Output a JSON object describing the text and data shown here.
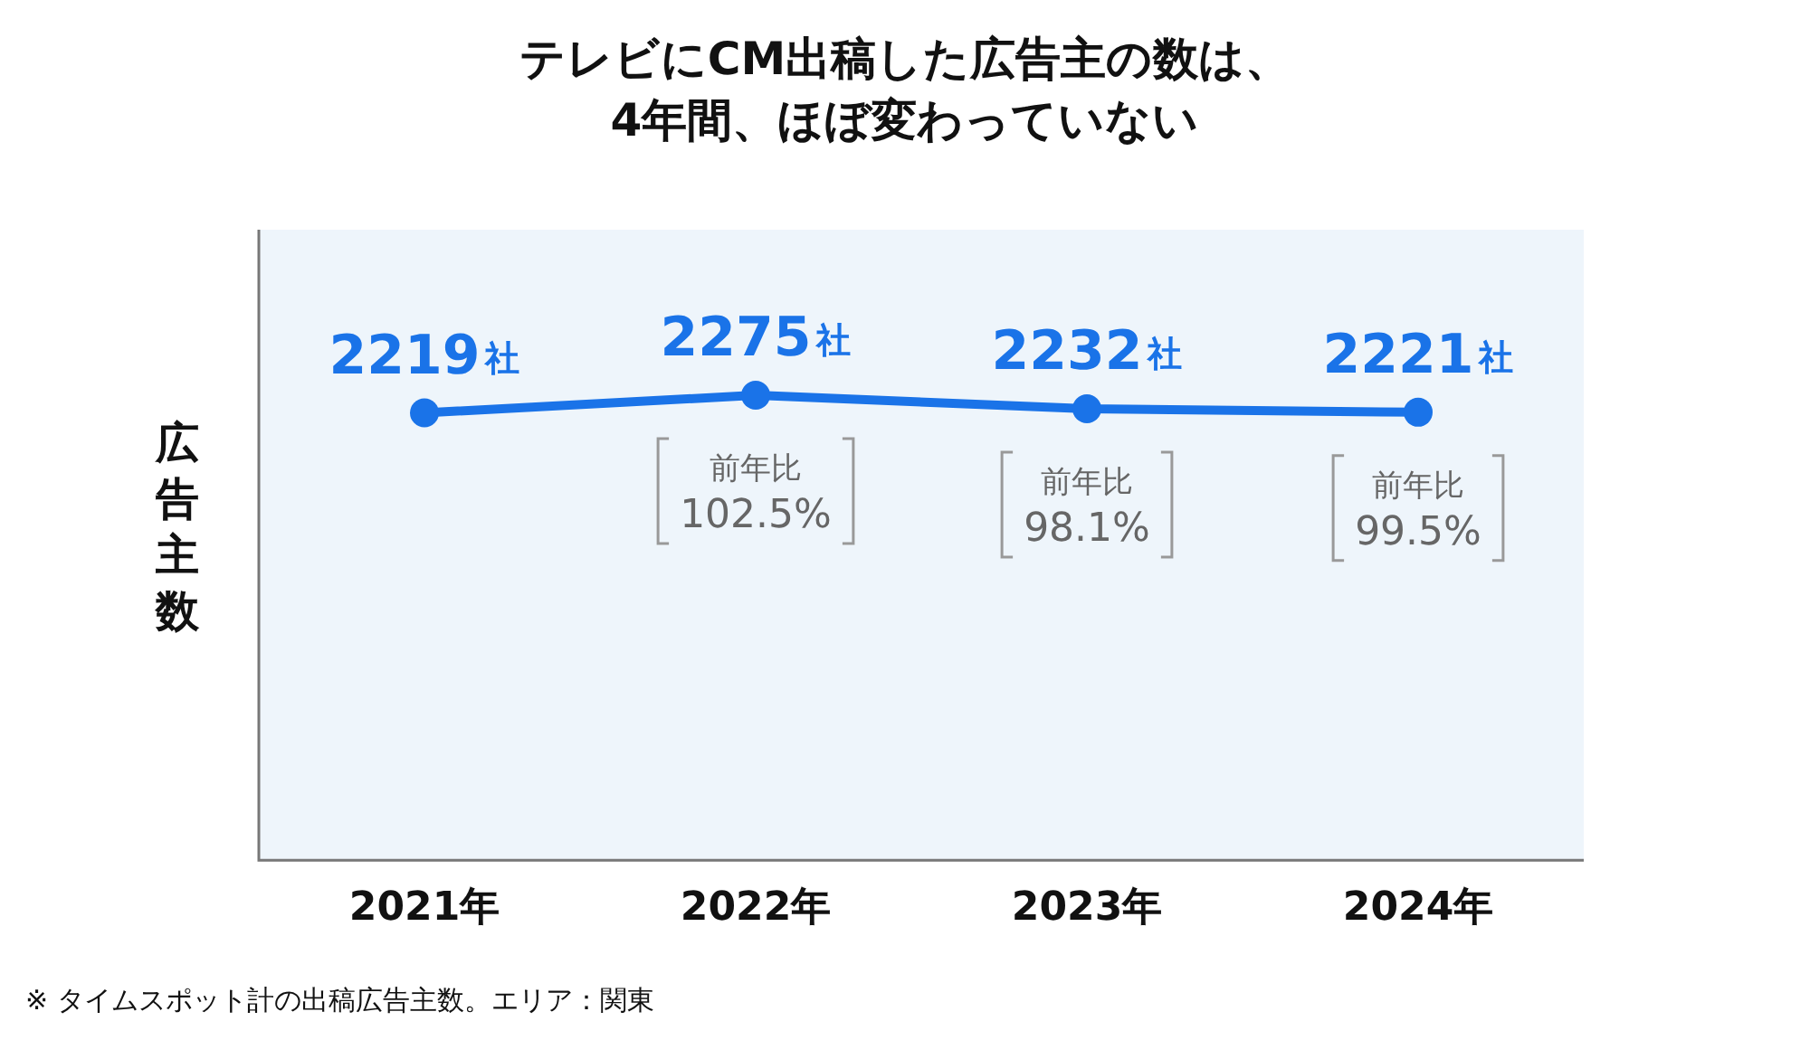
{
  "chart_data": {
    "type": "line",
    "title": "テレビにCM出稿した広告主の数は、\n4年間、ほぼ変わっていない",
    "ylabel": "広告主数",
    "categories": [
      "2021年",
      "2022年",
      "2023年",
      "2024年"
    ],
    "series": [
      {
        "color": "#1a73e8",
        "values": [
          2219,
          2275,
          2232,
          2221
        ],
        "value_labels": [
          "2219社",
          "2275社",
          "2232社",
          "2221社"
        ]
      }
    ],
    "ylim": [
      800,
      2800
    ],
    "tick_labels": "x",
    "legend": false,
    "marker": "circle",
    "line_style": "solid",
    "annotations": [
      {
        "text": "前年比\n102.5%",
        "x": "2022年",
        "y": 2275
      },
      {
        "text": "前年比\n98.1%",
        "x": "2023年",
        "y": 2232
      },
      {
        "text": "前年比\n99.5%",
        "x": "2024年",
        "y": 2221
      },
      "※ タイムスポット計の出稿広告主数。エリア：関東"
    ]
  }
}
